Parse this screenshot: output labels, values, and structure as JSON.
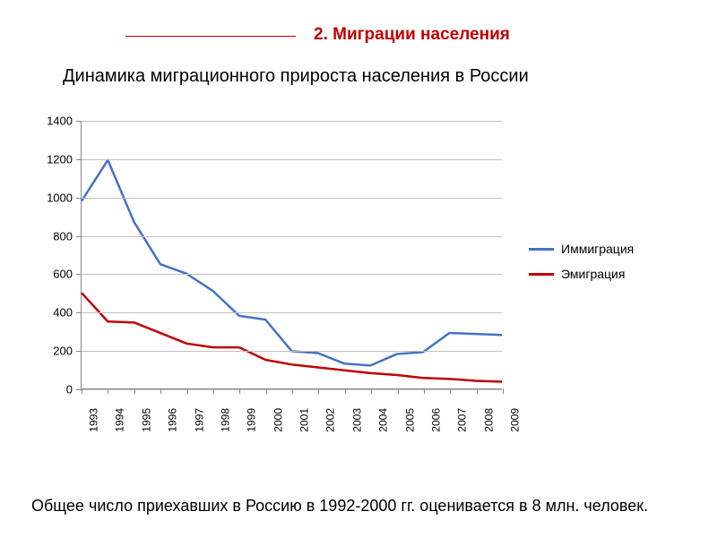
{
  "section": {
    "title": "2. Миграции населения",
    "title_color": "#c00000",
    "line_color": "#c00000"
  },
  "subtitle": "Динамика миграционного прироста населения в России",
  "footer_note": "Общее число приехавших в Россию в 1992-2000 гг. оценивается в 8 млн. человек.",
  "chart": {
    "type": "line",
    "background_color": "#ffffff",
    "grid_color": "#bfbfbf",
    "axis_color": "#888888",
    "label_fontsize": 13,
    "xlabel_fontsize": 12,
    "ylim": [
      0,
      1400
    ],
    "ytick_step": 200,
    "yticks": [
      0,
      200,
      400,
      600,
      800,
      1000,
      1200,
      1400
    ],
    "categories": [
      "1993",
      "1994",
      "1995",
      "1996",
      "1997",
      "1998",
      "1999",
      "2000",
      "2001",
      "2002",
      "2003",
      "2004",
      "2005",
      "2006",
      "2007",
      "2008",
      "2009"
    ],
    "series": [
      {
        "name": "Иммиграция",
        "color": "#4472c4",
        "line_width": 2.5,
        "values": [
          980,
          1195,
          870,
          650,
          600,
          510,
          380,
          360,
          195,
          185,
          130,
          120,
          180,
          190,
          290,
          285,
          280
        ]
      },
      {
        "name": "Эмиграция",
        "color": "#c00000",
        "line_width": 2.5,
        "values": [
          500,
          350,
          345,
          290,
          235,
          215,
          215,
          150,
          125,
          110,
          95,
          80,
          70,
          55,
          50,
          40,
          35
        ]
      }
    ],
    "legend": {
      "position": "right",
      "fontsize": 14
    }
  }
}
